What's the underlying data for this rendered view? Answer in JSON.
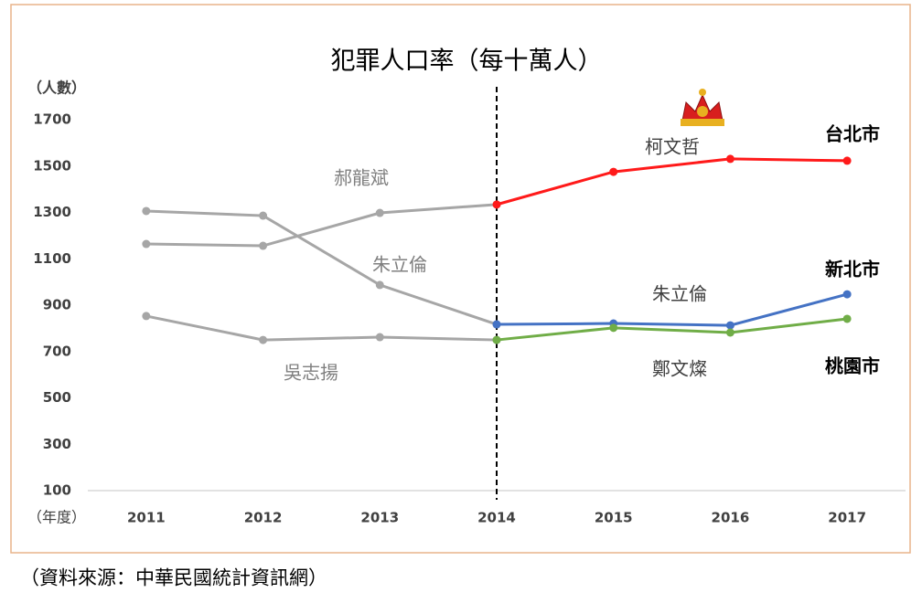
{
  "chart_data": {
    "type": "line",
    "title": "犯罪人口率（每十萬人）",
    "y_label": "（人數）",
    "x_label": "（年度）",
    "x": [
      2011,
      2012,
      2013,
      2014,
      2015,
      2016,
      2017
    ],
    "xlim": [
      2010.5,
      2017.5
    ],
    "xticks": [
      2011,
      2012,
      2013,
      2014,
      2015,
      2016,
      2017
    ],
    "ylim": [
      100,
      1700
    ],
    "yticks": [
      100,
      300,
      500,
      700,
      900,
      1100,
      1300,
      1500,
      1700
    ],
    "grid": false,
    "vline_x": 2014,
    "series": [
      {
        "name": "郝龍斌",
        "color": "#a6a6a6",
        "values": [
          1164,
          1156,
          1298,
          1334,
          null,
          null,
          null
        ]
      },
      {
        "name": "朱立倫",
        "color": "#a6a6a6",
        "values": [
          1306,
          1286,
          987,
          817,
          null,
          null,
          null
        ]
      },
      {
        "name": "吳志揚",
        "color": "#a6a6a6",
        "values": [
          853,
          750,
          762,
          750,
          null,
          null,
          null
        ]
      },
      {
        "name": "台北市",
        "color": "#ff1a1a",
        "values": [
          null,
          null,
          null,
          1334,
          1475,
          1531,
          1523
        ]
      },
      {
        "name": "新北市",
        "color": "#4472c4",
        "values": [
          null,
          null,
          null,
          817,
          821,
          813,
          947
        ]
      },
      {
        "name": "桃園市",
        "color": "#70ad47",
        "values": [
          null,
          null,
          null,
          750,
          802,
          782,
          841
        ]
      }
    ],
    "annotations": [
      "柯文哲",
      "朱立倫",
      "鄭文燦"
    ],
    "source": "（資料來源：中華民國統計資訊網）"
  }
}
